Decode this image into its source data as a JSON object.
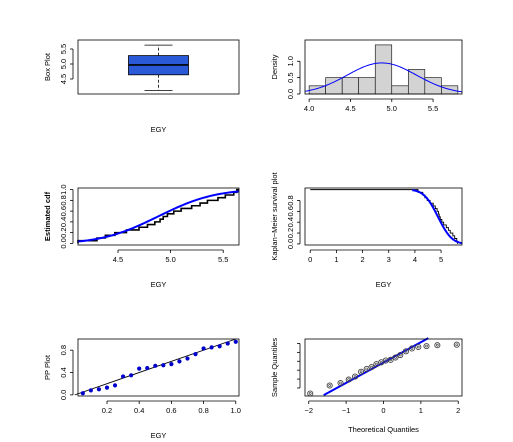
{
  "colors": {
    "blue": "#0000ff",
    "dark_blue": "#0000cc",
    "box_fill": "#2a5ad8",
    "hist_fill": "#d3d3d3",
    "black": "#000000"
  },
  "chart_data": [
    {
      "id": "box",
      "type": "boxplot",
      "title": "",
      "xlabel": "EGY",
      "ylabel": "Box Plot",
      "ylim": [
        4.0,
        5.8
      ],
      "yticks": [
        4.5,
        5.0,
        5.5
      ],
      "ytick_labels": [
        "4.5",
        "5.0",
        "5.5"
      ],
      "stats": {
        "min": 4.12,
        "q1": 4.64,
        "median": 4.97,
        "q3": 5.28,
        "max": 5.63
      }
    },
    {
      "id": "hist",
      "type": "histogram",
      "title": "",
      "xlabel": "",
      "ylabel": "Density",
      "xlim": [
        3.95,
        5.85
      ],
      "ylim": [
        0,
        1.65
      ],
      "xticks": [
        4.0,
        4.5,
        5.0,
        5.5
      ],
      "xtick_labels": [
        "4.0",
        "4.5",
        "5.0",
        "5.5"
      ],
      "yticks": [
        0.0,
        0.5,
        1.0
      ],
      "ytick_labels": [
        "0.0",
        "0.5",
        "1.0"
      ],
      "bins": [
        {
          "x0": 4.0,
          "x1": 4.2,
          "density": 0.25
        },
        {
          "x0": 4.2,
          "x1": 4.4,
          "density": 0.5
        },
        {
          "x0": 4.4,
          "x1": 4.6,
          "density": 0.5
        },
        {
          "x0": 4.6,
          "x1": 4.8,
          "density": 0.5
        },
        {
          "x0": 4.8,
          "x1": 5.0,
          "density": 1.5
        },
        {
          "x0": 5.0,
          "x1": 5.2,
          "density": 0.25
        },
        {
          "x0": 5.2,
          "x1": 5.4,
          "density": 0.75
        },
        {
          "x0": 5.4,
          "x1": 5.6,
          "density": 0.5
        },
        {
          "x0": 5.6,
          "x1": 5.8,
          "density": 0.25
        }
      ],
      "curve": {
        "type": "normal",
        "mean": 4.88,
        "sd": 0.42
      }
    },
    {
      "id": "cdf",
      "type": "step",
      "title": "",
      "xlabel": "EGY",
      "ylabel": "Estimated cdf",
      "xlim": [
        4.12,
        5.65
      ],
      "ylim": [
        -0.03,
        1.03
      ],
      "xticks": [
        4.5,
        5.0,
        5.5
      ],
      "xtick_labels": [
        "4.5",
        "5.0",
        "5.5"
      ],
      "yticks": [
        0.0,
        0.2,
        0.4,
        0.6,
        0.8,
        1.0
      ],
      "ytick_labels": [
        "0.0",
        "0.2",
        "0.4",
        "0.6",
        "0.8",
        "1.0"
      ],
      "sample": [
        4.12,
        4.3,
        4.38,
        4.47,
        4.58,
        4.7,
        4.78,
        4.85,
        4.9,
        4.93,
        4.97,
        5.03,
        5.1,
        5.2,
        5.28,
        5.35,
        5.45,
        5.52,
        5.6,
        5.63
      ],
      "curve": {
        "type": "normal_cdf",
        "mean": 4.88,
        "sd": 0.42
      }
    },
    {
      "id": "km",
      "type": "line",
      "title": "",
      "xlabel": "EGY",
      "ylabel": "Kaplan−Meier survival plot",
      "xlim": [
        -0.2,
        5.8
      ],
      "ylim": [
        -0.02,
        1.03
      ],
      "xticks": [
        0,
        1,
        2,
        3,
        4,
        5
      ],
      "xtick_labels": [
        "0",
        "1",
        "2",
        "3",
        "4",
        "5"
      ],
      "yticks": [
        0.0,
        0.2,
        0.4,
        0.6,
        0.8
      ],
      "ytick_labels": [
        "0.0",
        "0.2",
        "0.4",
        "0.6",
        "0.8"
      ],
      "sample": [
        4.12,
        4.3,
        4.38,
        4.47,
        4.58,
        4.7,
        4.78,
        4.85,
        4.9,
        4.93,
        4.97,
        5.03,
        5.1,
        5.2,
        5.28,
        5.35,
        5.45,
        5.52,
        5.6,
        5.63
      ],
      "curve": {
        "type": "normal_survival",
        "mean": 4.88,
        "sd": 0.42
      }
    },
    {
      "id": "pp",
      "type": "scatter",
      "title": "",
      "xlabel": "EGY",
      "ylabel": "PP Plot",
      "xlim": [
        0.02,
        1.02
      ],
      "ylim": [
        -0.02,
        1.0
      ],
      "xticks": [
        0.2,
        0.4,
        0.6,
        0.8,
        1.0
      ],
      "xtick_labels": [
        "0.2",
        "0.4",
        "0.6",
        "0.8",
        "1.0"
      ],
      "yticks": [
        0.0,
        0.4,
        0.8
      ],
      "ytick_labels": [
        "0.0",
        "0.4",
        "0.8"
      ],
      "points": [
        [
          0.05,
          0.03
        ],
        [
          0.1,
          0.08
        ],
        [
          0.15,
          0.1
        ],
        [
          0.2,
          0.13
        ],
        [
          0.25,
          0.17
        ],
        [
          0.3,
          0.33
        ],
        [
          0.35,
          0.35
        ],
        [
          0.4,
          0.47
        ],
        [
          0.45,
          0.48
        ],
        [
          0.5,
          0.52
        ],
        [
          0.55,
          0.53
        ],
        [
          0.6,
          0.55
        ],
        [
          0.65,
          0.6
        ],
        [
          0.7,
          0.65
        ],
        [
          0.75,
          0.73
        ],
        [
          0.8,
          0.83
        ],
        [
          0.85,
          0.85
        ],
        [
          0.9,
          0.87
        ],
        [
          0.95,
          0.92
        ],
        [
          1.0,
          0.95
        ]
      ],
      "reference_line": [
        [
          0.0,
          0.0
        ],
        [
          1.0,
          1.0
        ]
      ]
    },
    {
      "id": "qq",
      "type": "scatter",
      "title": "",
      "xlabel": "Theoretical Quantiles",
      "ylabel": "Sample Quantiles",
      "xlim": [
        -2.1,
        2.1
      ],
      "ylim": [
        -1.95,
        1.25
      ],
      "xticks": [
        -2,
        -1,
        0,
        1,
        2
      ],
      "xtick_labels": [
        "−2",
        "−1",
        "0",
        "1",
        "2"
      ],
      "yticks": [
        -1.5,
        -1.0,
        -0.5,
        0.0,
        0.5,
        1.0
      ],
      "ytick_labels": [
        "",
        "",
        "",
        "",
        "",
        ""
      ],
      "points": [
        [
          -1.96,
          -1.81
        ],
        [
          -1.44,
          -1.36
        ],
        [
          -1.15,
          -1.22
        ],
        [
          -0.93,
          -1.03
        ],
        [
          -0.76,
          -0.86
        ],
        [
          -0.6,
          -0.59
        ],
        [
          -0.45,
          -0.43
        ],
        [
          -0.32,
          -0.33
        ],
        [
          -0.19,
          -0.16
        ],
        [
          -0.06,
          -0.06
        ],
        [
          0.06,
          0.04
        ],
        [
          0.19,
          0.08
        ],
        [
          0.32,
          0.21
        ],
        [
          0.45,
          0.35
        ],
        [
          0.6,
          0.56
        ],
        [
          0.76,
          0.72
        ],
        [
          0.93,
          0.8
        ],
        [
          1.15,
          0.85
        ],
        [
          1.44,
          0.9
        ],
        [
          1.96,
          0.93
        ]
      ],
      "reference_line": [
        [
          -1.6,
          -1.9
        ],
        [
          1.2,
          1.3
        ]
      ]
    }
  ]
}
